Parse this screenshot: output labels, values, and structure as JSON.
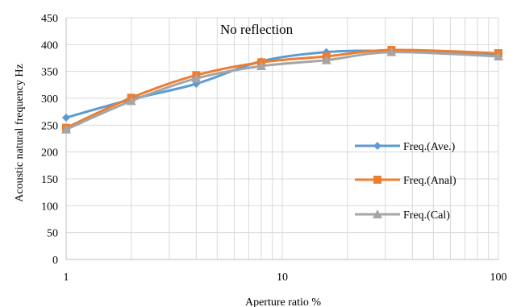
{
  "chart_data": {
    "type": "line",
    "annotation": "No reflection",
    "xlabel": "Aperture ratio  %",
    "ylabel": "Acoustic natural frequency   Hz",
    "x_scale": "log",
    "xlim": [
      1,
      100
    ],
    "ylim": [
      0,
      450
    ],
    "x_ticks": [
      1,
      10,
      100
    ],
    "x_tick_labels": [
      "1",
      "10",
      "100"
    ],
    "y_ticks": [
      0,
      50,
      100,
      150,
      200,
      250,
      300,
      350,
      400,
      450
    ],
    "y_tick_labels": [
      "0",
      "50",
      "100",
      "150",
      "200",
      "250",
      "300",
      "350",
      "400",
      "450"
    ],
    "grid": true,
    "legend_position": "right",
    "series": [
      {
        "name": "Freq.(Ave.)",
        "marker": "diamond",
        "color": "#5B9BD5",
        "x": [
          1,
          2,
          4,
          8,
          16,
          32,
          100
        ],
        "y": [
          264,
          298,
          327,
          369,
          386,
          388,
          380
        ]
      },
      {
        "name": "Freq.(Anal)",
        "marker": "square",
        "color": "#ED7D31",
        "x": [
          1,
          2,
          4,
          8,
          16,
          32,
          100
        ],
        "y": [
          245,
          301,
          343,
          367,
          378,
          390,
          384
        ]
      },
      {
        "name": "Freq.(Cal)",
        "marker": "triangle",
        "color": "#A5A5A5",
        "x": [
          1,
          2,
          4,
          8,
          16,
          32,
          100
        ],
        "y": [
          242,
          295,
          337,
          360,
          371,
          386,
          378
        ]
      }
    ]
  }
}
